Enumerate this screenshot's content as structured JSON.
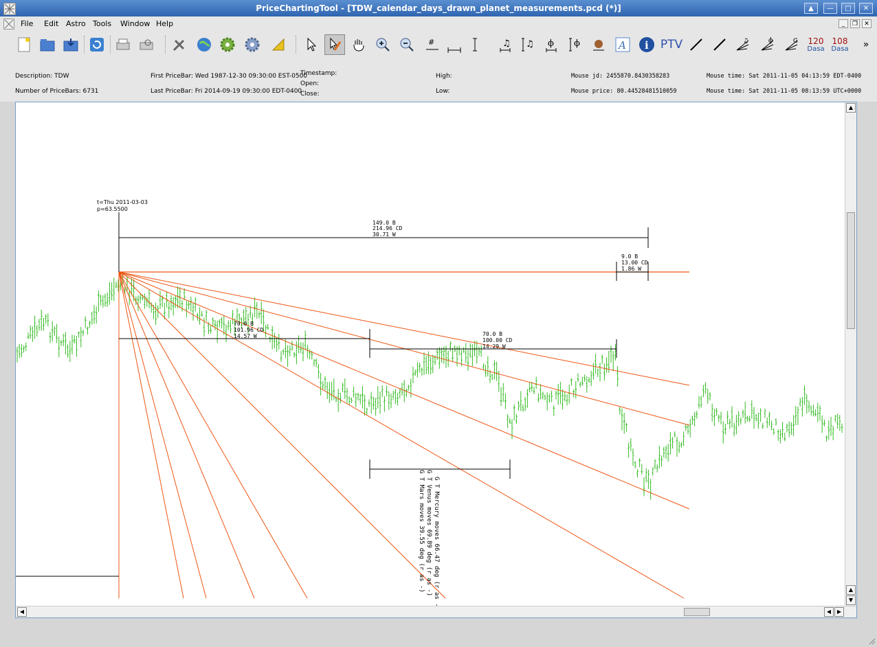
{
  "window": {
    "title": "PriceChartingTool - [TDW_calendar_days_drawn_planet_measurements.pcd (*)]"
  },
  "menu": [
    {
      "label": "File",
      "key": "F"
    },
    {
      "label": "Edit",
      "key": "E"
    },
    {
      "label": "Astro",
      "key": "A"
    },
    {
      "label": "Tools",
      "key": "T"
    },
    {
      "label": "Window",
      "key": "W"
    },
    {
      "label": "Help",
      "key": "H"
    }
  ],
  "toolbar": {
    "ptv_label": "PTV",
    "dasa1_value": "120",
    "dasa1_label": "Dasa",
    "dasa2_value": "108",
    "dasa2_label": "Dasa",
    "overflow": "»"
  },
  "info": {
    "description": "Description: TDW",
    "num_pricebars": "Number of PriceBars: 6731",
    "first_pricebar": "First PriceBar: Wed 1987-12-30 09:30:00 EST-0500",
    "last_pricebar": "Last PriceBar: Fri 2014-09-19 09:30:00 EDT-0400",
    "timestamp": "Timestamp:",
    "open": "Open:",
    "close": "Close:",
    "high": "High:",
    "low": "Low:",
    "mouse_jd": "Mouse jd:   2455870.8430358283",
    "mouse_price": "Mouse price: 80.44528481510059",
    "mouse_time_local": "Mouse time: Sat 2011-11-05 04:13:59 EDT-0400",
    "mouse_time_utc": "Mouse time: Sat 2011-11-05 08:13:59 UTC+0000"
  },
  "chart": {
    "pivot_t": "t=Thu 2011-03-03",
    "pivot_p": "p=63.5500",
    "measure1": [
      "149.0 B",
      "214.96 CD",
      "30.71 W"
    ],
    "measure2": [
      "9.0 B",
      "13.00 CD",
      "1.86 W"
    ],
    "measure3": [
      "70.0 B",
      "101.96 CD",
      "14.57 W"
    ],
    "measure4": [
      "70.0 B",
      "100.00 CD",
      "14.29 W"
    ],
    "planet_lines": [
      "G T Mercury moves 66.47 deg (r as -",
      "G T Venus moves 69.89 deg (r as -)",
      "G T Mars moves 39.55 deg (r as -)"
    ],
    "colors": {
      "bars": "#33bb22",
      "gann": "#ee5511",
      "tool": "#000000"
    }
  }
}
